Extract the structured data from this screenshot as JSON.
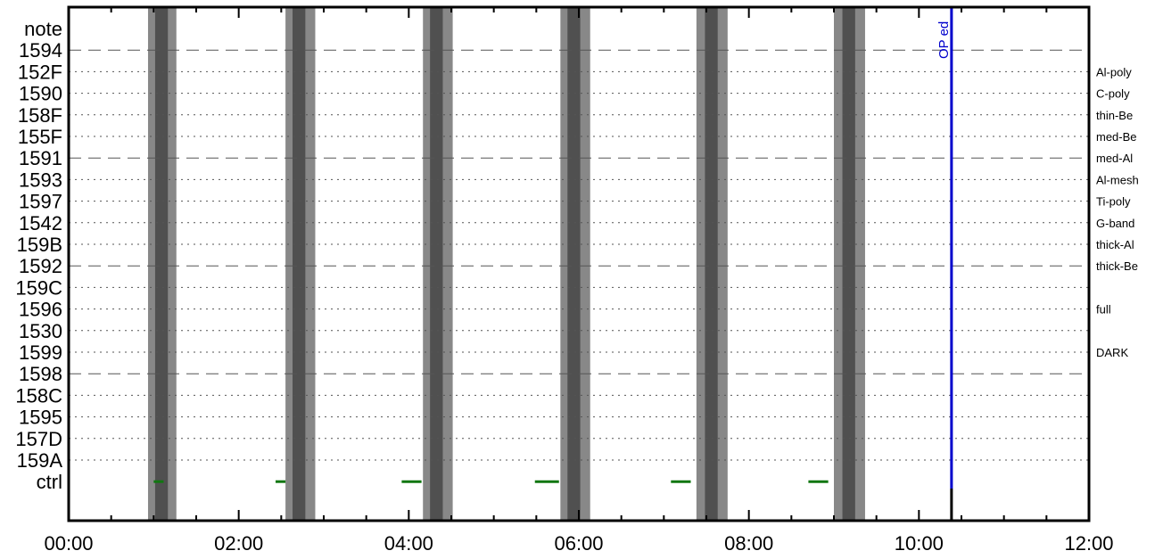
{
  "chart_data": {
    "type": "timeline",
    "x_range": [
      "00:00",
      "12:00"
    ],
    "x_ticks": [
      "00:00",
      "02:00",
      "04:00",
      "06:00",
      "08:00",
      "10:00",
      "12:00"
    ],
    "rows": [
      {
        "label": "note",
        "filter": "",
        "style": "none"
      },
      {
        "label": "1594",
        "filter": "",
        "style": "dashed"
      },
      {
        "label": "152F",
        "filter": "Al-poly",
        "style": "dotted"
      },
      {
        "label": "1590",
        "filter": "C-poly",
        "style": "dotted"
      },
      {
        "label": "158F",
        "filter": "thin-Be",
        "style": "dotted"
      },
      {
        "label": "155F",
        "filter": "med-Be",
        "style": "dotted"
      },
      {
        "label": "1591",
        "filter": "med-Al",
        "style": "dashed"
      },
      {
        "label": "1593",
        "filter": "Al-mesh",
        "style": "dotted"
      },
      {
        "label": "1597",
        "filter": "Ti-poly",
        "style": "dotted"
      },
      {
        "label": "1542",
        "filter": "G-band",
        "style": "dotted"
      },
      {
        "label": "159B",
        "filter": "thick-Al",
        "style": "dotted"
      },
      {
        "label": "1592",
        "filter": "thick-Be",
        "style": "dashed"
      },
      {
        "label": "159C",
        "filter": "",
        "style": "dotted"
      },
      {
        "label": "1596",
        "filter": "full",
        "style": "dotted"
      },
      {
        "label": "1530",
        "filter": "",
        "style": "dotted"
      },
      {
        "label": "1599",
        "filter": "DARK",
        "style": "dotted"
      },
      {
        "label": "1598",
        "filter": "",
        "style": "dashed"
      },
      {
        "label": "158C",
        "filter": "",
        "style": "dotted"
      },
      {
        "label": "1595",
        "filter": "",
        "style": "dotted"
      },
      {
        "label": "157D",
        "filter": "",
        "style": "dotted"
      },
      {
        "label": "159A",
        "filter": "",
        "style": "dotted"
      },
      {
        "label": "ctrl",
        "filter": "",
        "style": "none"
      }
    ],
    "shaded_periods": [
      {
        "outer": [
          "00:56",
          "01:16"
        ],
        "inner": [
          "01:01",
          "01:10"
        ]
      },
      {
        "outer": [
          "02:33",
          "02:54"
        ],
        "inner": [
          "02:38",
          "02:47"
        ]
      },
      {
        "outer": [
          "04:10",
          "04:31"
        ],
        "inner": [
          "04:15",
          "04:24"
        ]
      },
      {
        "outer": [
          "05:47",
          "06:08"
        ],
        "inner": [
          "05:52",
          "06:01"
        ]
      },
      {
        "outer": [
          "07:23",
          "07:45"
        ],
        "inner": [
          "07:29",
          "07:38"
        ]
      },
      {
        "outer": [
          "09:00",
          "09:22"
        ],
        "inner": [
          "09:06",
          "09:15"
        ]
      }
    ],
    "ctrl_segments": [
      [
        "01:00",
        "01:07"
      ],
      [
        "02:26",
        "02:33"
      ],
      [
        "03:55",
        "04:09"
      ],
      [
        "05:29",
        "05:46"
      ],
      [
        "07:05",
        "07:19"
      ],
      [
        "08:42",
        "08:56"
      ]
    ],
    "marker": {
      "time": "10:23",
      "label": "OP ed",
      "color": "#0000cc"
    },
    "colors": {
      "outer_band": "#888888",
      "inner_band": "#505050",
      "ctrl": "#117711",
      "grid": "#555555"
    }
  }
}
